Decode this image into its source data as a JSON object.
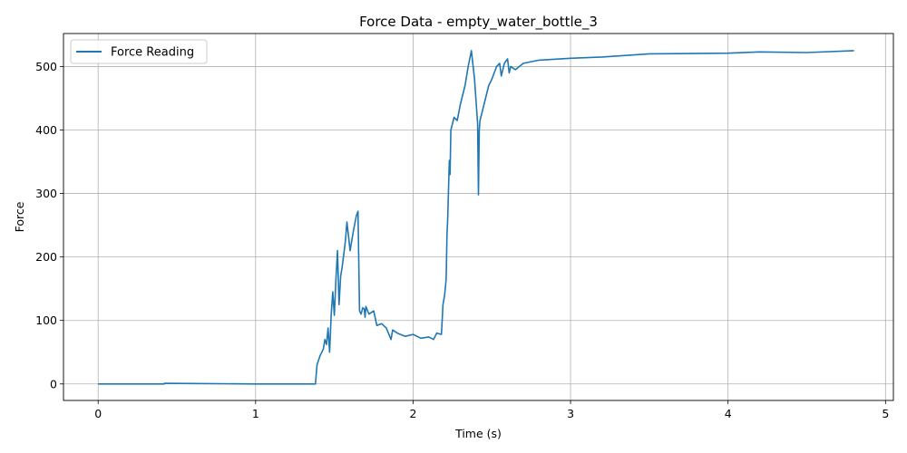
{
  "chart_data": {
    "type": "line",
    "title": "Force Data - empty_water_bottle_3",
    "xlabel": "Time (s)",
    "ylabel": "Force",
    "xlim": [
      -0.22,
      5.05
    ],
    "ylim": [
      -26,
      552
    ],
    "xticks": [
      0,
      1,
      2,
      3,
      4,
      5
    ],
    "yticks": [
      0,
      100,
      200,
      300,
      400,
      500
    ],
    "grid": true,
    "legend_position": "top-left",
    "series": [
      {
        "name": "Force Reading",
        "color": "#1f77b4",
        "x": [
          0,
          0.42,
          0.421,
          1.0,
          1.38,
          1.39,
          1.41,
          1.43,
          1.44,
          1.45,
          1.46,
          1.47,
          1.48,
          1.49,
          1.5,
          1.51,
          1.52,
          1.53,
          1.54,
          1.55,
          1.56,
          1.57,
          1.58,
          1.6,
          1.62,
          1.64,
          1.65,
          1.66,
          1.67,
          1.68,
          1.69,
          1.695,
          1.7,
          1.72,
          1.75,
          1.77,
          1.8,
          1.83,
          1.86,
          1.87,
          1.9,
          1.95,
          2.0,
          2.05,
          2.1,
          2.13,
          2.15,
          2.18,
          2.19,
          2.2,
          2.21,
          2.215,
          2.22,
          2.23,
          2.235,
          2.24,
          2.245,
          2.25,
          2.26,
          2.28,
          2.3,
          2.33,
          2.35,
          2.37,
          2.39,
          2.4,
          2.41,
          2.415,
          2.42,
          2.425,
          2.43,
          2.45,
          2.48,
          2.5,
          2.53,
          2.55,
          2.56,
          2.58,
          2.6,
          2.61,
          2.62,
          2.65,
          2.7,
          2.8,
          3.0,
          3.2,
          3.5,
          4.0,
          4.2,
          4.5,
          4.8
        ],
        "y": [
          0,
          0,
          1,
          0,
          0,
          30,
          45,
          55,
          70,
          62,
          88,
          50,
          110,
          145,
          108,
          165,
          210,
          125,
          170,
          185,
          205,
          225,
          255,
          210,
          240,
          265,
          272,
          115,
          110,
          120,
          118,
          105,
          122,
          110,
          115,
          92,
          95,
          88,
          70,
          85,
          80,
          75,
          78,
          72,
          74,
          70,
          80,
          78,
          125,
          140,
          165,
          235,
          260,
          352,
          330,
          400,
          405,
          410,
          420,
          415,
          440,
          470,
          500,
          525,
          480,
          445,
          410,
          298,
          400,
          415,
          420,
          440,
          470,
          480,
          500,
          505,
          485,
          505,
          512,
          490,
          500,
          495,
          505,
          510,
          513,
          515,
          520,
          521,
          523,
          522,
          525
        ]
      }
    ]
  }
}
